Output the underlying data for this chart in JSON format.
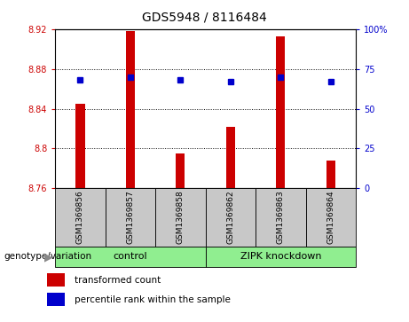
{
  "title": "GDS5948 / 8116484",
  "samples": [
    "GSM1369856",
    "GSM1369857",
    "GSM1369858",
    "GSM1369862",
    "GSM1369863",
    "GSM1369864"
  ],
  "bar_values": [
    8.845,
    8.918,
    8.795,
    8.822,
    8.913,
    8.788
  ],
  "percentile_values": [
    68,
    70,
    68,
    67,
    70,
    67
  ],
  "ymin": 8.76,
  "ymax": 8.92,
  "yticks": [
    8.76,
    8.8,
    8.84,
    8.88,
    8.92
  ],
  "grid_lines": [
    8.8,
    8.84,
    8.88
  ],
  "right_yticks": [
    0,
    25,
    50,
    75,
    100
  ],
  "bar_color": "#cc0000",
  "percentile_color": "#0000cc",
  "sample_bg_color": "#c8c8c8",
  "ctrl_color": "#90EE90",
  "legend_bar_label": "transformed count",
  "legend_pct_label": "percentile rank within the sample",
  "genotype_label": "genotype/variation",
  "title_fontsize": 10,
  "tick_fontsize": 7,
  "label_fontsize": 7.5,
  "group_fontsize": 8
}
